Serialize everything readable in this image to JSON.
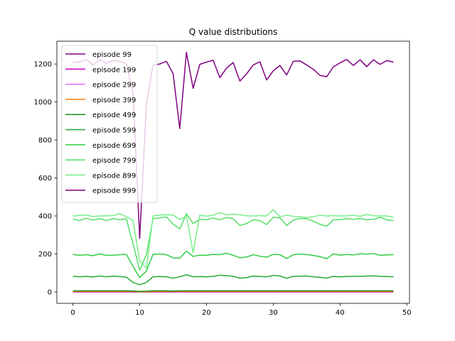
{
  "chart_data": {
    "type": "line",
    "title": "Q value distributions",
    "xlabel": "",
    "ylabel": "",
    "xlim": [
      -2.4,
      50.4
    ],
    "ylim": [
      -60,
      1320
    ],
    "grid": false,
    "legend_position": "top-left",
    "x_ticks": [
      0,
      10,
      20,
      30,
      40,
      50
    ],
    "y_ticks": [
      0,
      200,
      400,
      600,
      800,
      1000,
      1200
    ],
    "x": [
      0,
      1,
      2,
      3,
      4,
      5,
      6,
      7,
      8,
      9,
      10,
      11,
      12,
      13,
      14,
      15,
      16,
      17,
      18,
      19,
      20,
      21,
      22,
      23,
      24,
      25,
      26,
      27,
      28,
      29,
      30,
      31,
      32,
      33,
      34,
      35,
      36,
      37,
      38,
      39,
      40,
      41,
      42,
      43,
      44,
      45,
      46,
      47,
      48
    ],
    "series": [
      {
        "name": "episode 99",
        "color": "#800080",
        "values": [
          0,
          0,
          0,
          0,
          0,
          0,
          0,
          0,
          0,
          0,
          0,
          0,
          0,
          0,
          0,
          0,
          0,
          0,
          0,
          0,
          0,
          0,
          0,
          0,
          0,
          0,
          0,
          0,
          0,
          0,
          0,
          0,
          0,
          0,
          0,
          0,
          0,
          0,
          0,
          0,
          0,
          0,
          0,
          0,
          0,
          0,
          0,
          0,
          0
        ]
      },
      {
        "name": "episode 199",
        "color": "#cc00cc",
        "values": [
          1,
          1,
          1,
          1,
          1,
          1,
          1,
          1,
          1,
          1,
          1,
          1,
          1,
          1,
          1,
          1,
          1,
          1,
          1,
          1,
          1,
          1,
          1,
          1,
          1,
          1,
          1,
          1,
          1,
          1,
          1,
          1,
          1,
          1,
          1,
          1,
          1,
          1,
          1,
          1,
          1,
          1,
          1,
          1,
          1,
          1,
          1,
          1,
          1
        ]
      },
      {
        "name": "episode 299",
        "color": "#e066ff",
        "values": [
          2,
          2,
          2,
          2,
          2,
          2,
          2,
          2,
          2,
          2,
          2,
          2,
          2,
          2,
          2,
          2,
          2,
          2,
          2,
          2,
          2,
          2,
          2,
          2,
          2,
          2,
          2,
          2,
          2,
          2,
          2,
          2,
          2,
          2,
          2,
          2,
          2,
          2,
          2,
          2,
          2,
          2,
          2,
          2,
          2,
          2,
          2,
          2,
          2
        ]
      },
      {
        "name": "episode 399",
        "color": "#ff7f0e",
        "values": [
          2,
          2,
          2,
          2,
          2,
          2,
          2,
          2,
          2,
          2,
          1,
          1,
          2,
          2,
          2,
          2,
          2,
          2,
          2,
          2,
          2,
          2,
          2,
          2,
          2,
          2,
          2,
          2,
          2,
          2,
          2,
          2,
          2,
          2,
          2,
          2,
          2,
          2,
          2,
          2,
          2,
          2,
          2,
          2,
          2,
          2,
          2,
          2,
          2
        ]
      },
      {
        "name": "episode 499",
        "color": "#1a8a1a",
        "values": [
          6,
          6,
          6,
          6,
          6,
          6,
          6,
          6,
          6,
          5,
          3,
          4,
          6,
          6,
          6,
          5,
          6,
          6,
          6,
          6,
          6,
          6,
          6,
          6,
          6,
          6,
          6,
          6,
          6,
          6,
          6,
          6,
          6,
          6,
          6,
          6,
          6,
          6,
          6,
          6,
          6,
          6,
          6,
          6,
          6,
          6,
          6,
          6,
          6
        ]
      },
      {
        "name": "episode 599",
        "color": "#22aa33",
        "values": [
          82,
          80,
          82,
          79,
          84,
          80,
          83,
          81,
          78,
          50,
          38,
          50,
          80,
          81,
          80,
          72,
          80,
          90,
          80,
          81,
          80,
          82,
          88,
          86,
          82,
          73,
          75,
          84,
          81,
          80,
          87,
          84,
          72,
          82,
          83,
          84,
          80,
          77,
          73,
          82,
          80,
          81,
          82,
          82,
          84,
          85,
          82,
          81,
          80
        ]
      },
      {
        "name": "episode 699",
        "color": "#33cc44",
        "values": [
          198,
          193,
          196,
          191,
          200,
          193,
          193,
          196,
          198,
          135,
          75,
          110,
          198,
          200,
          196,
          180,
          178,
          215,
          187,
          194,
          193,
          198,
          196,
          204,
          193,
          180,
          184,
          196,
          188,
          183,
          198,
          196,
          176,
          196,
          199,
          197,
          192,
          186,
          175,
          200,
          194,
          197,
          195,
          201,
          199,
          202,
          193,
          195,
          196
        ]
      },
      {
        "name": "episode 799",
        "color": "#55dd66",
        "values": [
          384,
          376,
          388,
          378,
          386,
          376,
          386,
          380,
          385,
          254,
          114,
          196,
          386,
          390,
          395,
          358,
          332,
          412,
          360,
          382,
          380,
          389,
          380,
          392,
          386,
          350,
          360,
          380,
          375,
          355,
          393,
          390,
          350,
          378,
          387,
          386,
          372,
          356,
          346,
          380,
          381,
          386,
          382,
          386,
          380,
          382,
          393,
          380,
          375
        ]
      },
      {
        "name": "episode 899",
        "color": "#77ee88",
        "values": [
          400,
          403,
          405,
          397,
          400,
          401,
          402,
          412,
          396,
          376,
          164,
          125,
          400,
          405,
          406,
          405,
          382,
          400,
          206,
          405,
          399,
          404,
          418,
          406,
          410,
          406,
          401,
          400,
          402,
          400,
          433,
          396,
          404,
          398,
          396,
          392,
          396,
          404,
          400,
          402,
          400,
          401,
          404,
          398,
          408,
          401,
          400,
          400,
          394
        ]
      },
      {
        "name": "episode 999",
        "color": "#800080",
        "values": [
          1208,
          1210,
          1224,
          1195,
          1222,
          1205,
          1218,
          1215,
          1200,
          1050,
          282,
          988,
          1194,
          1200,
          1214,
          1150,
          860,
          1262,
          1072,
          1198,
          1210,
          1220,
          1128,
          1178,
          1208,
          1110,
          1148,
          1195,
          1212,
          1116,
          1164,
          1192,
          1142,
          1214,
          1216,
          1195,
          1172,
          1140,
          1133,
          1185,
          1206,
          1224,
          1192,
          1222,
          1186,
          1222,
          1198,
          1218,
          1210
        ]
      }
    ]
  }
}
